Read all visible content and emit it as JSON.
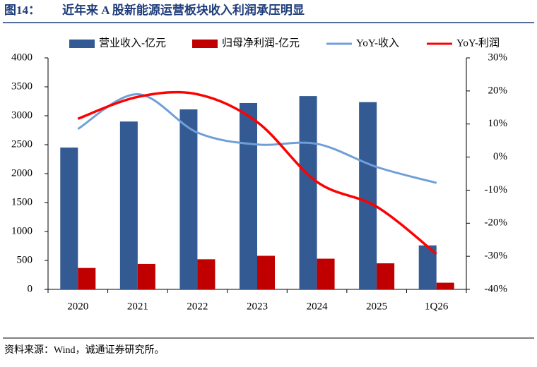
{
  "header": {
    "figure_label": "图14：",
    "title": "近年来 A 股新能源运营板块收入利润承压明显"
  },
  "chart_data": {
    "type": "bar-line",
    "categories": [
      "2020",
      "2021",
      "2022",
      "2023",
      "2024",
      "2025",
      "1Q26"
    ],
    "series": [
      {
        "name": "营业收入-亿元",
        "color": "#335a92",
        "type": "bar",
        "values": [
          2450,
          2900,
          3110,
          3220,
          3340,
          3235,
          760
        ]
      },
      {
        "name": "归母净利润-亿元",
        "color": "#c00000",
        "type": "bar",
        "values": [
          370,
          440,
          520,
          580,
          530,
          450,
          115
        ]
      },
      {
        "name": "YoY-收入",
        "color": "#6f9fd8",
        "type": "line",
        "axis": "y2",
        "values": [
          8.5,
          19,
          7.4,
          3.8,
          4,
          -3,
          -7.8
        ]
      },
      {
        "name": "YoY-利润",
        "color": "#ff0000",
        "type": "line",
        "axis": "y2",
        "values": [
          11.6,
          18.2,
          19,
          10.6,
          -7.5,
          -15,
          -29.3
        ]
      }
    ],
    "ylim": [
      0,
      4000
    ],
    "yticks": [
      0,
      500,
      1000,
      1500,
      2000,
      2500,
      3000,
      3500,
      4000
    ],
    "y2lim": [
      -40,
      30
    ],
    "y2ticks": [
      {
        "value": -40,
        "label": "-40%"
      },
      {
        "value": -30,
        "label": "-30%"
      },
      {
        "value": -20,
        "label": "-20%"
      },
      {
        "value": -10,
        "label": "-10%"
      },
      {
        "value": 0,
        "label": "0%"
      },
      {
        "value": 10,
        "label": "10%"
      },
      {
        "value": 20,
        "label": "20%"
      },
      {
        "value": 30,
        "label": "30%"
      }
    ],
    "legend": "top"
  },
  "footer": {
    "source": "资料来源：Wind，诚通证券研究所。"
  }
}
